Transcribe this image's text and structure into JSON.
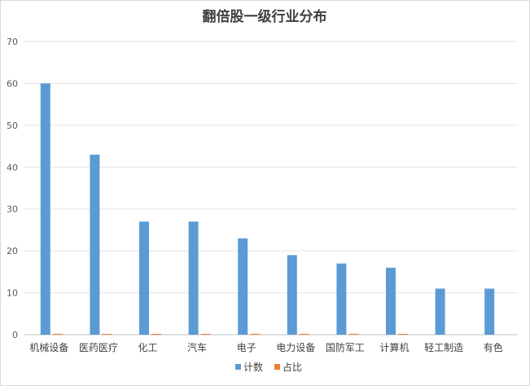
{
  "chart_data": {
    "type": "bar",
    "title": "翻倍股一级行业分布",
    "categories": [
      "机械设备",
      "医药医疗",
      "化工",
      "汽车",
      "电子",
      "电力设备",
      "国防军工",
      "计算机",
      "轻工制造",
      "有色"
    ],
    "series": [
      {
        "name": "计数",
        "color": "#5b9bd5",
        "values": [
          60,
          43,
          27,
          27,
          23,
          19,
          17,
          16,
          11,
          11
        ]
      },
      {
        "name": "占比",
        "color": "#ed7d31",
        "values": [
          0.2,
          0.2,
          0.2,
          0.2,
          0.2,
          0.2,
          0.2,
          0.2,
          0,
          0
        ]
      }
    ],
    "ylim": [
      0,
      70
    ],
    "yticks": [
      0,
      10,
      20,
      30,
      40,
      50,
      60,
      70
    ],
    "grid": true,
    "legend": "bottom"
  }
}
